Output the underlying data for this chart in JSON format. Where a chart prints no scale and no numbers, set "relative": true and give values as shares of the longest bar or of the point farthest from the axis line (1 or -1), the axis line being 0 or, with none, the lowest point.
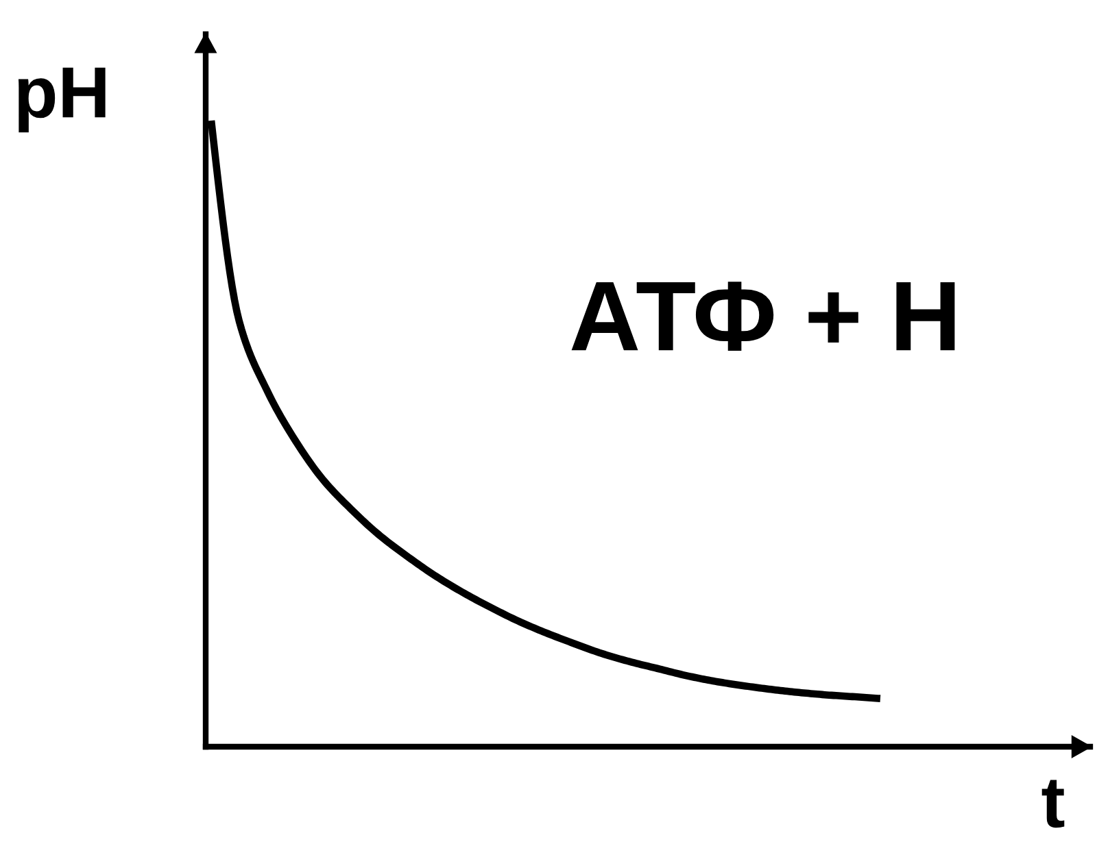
{
  "chart_data": {
    "type": "line",
    "relative": true,
    "xlabel": "t",
    "ylabel": "pH",
    "color": "#000000",
    "categories": [
      null,
      null,
      null,
      null,
      null,
      null,
      null,
      null,
      null,
      null,
      null,
      null,
      null,
      null,
      null,
      null,
      null,
      null,
      null,
      null,
      null,
      null,
      null,
      null,
      null
    ],
    "values": [
      1.0,
      0.68,
      0.569,
      0.49,
      0.427,
      0.38,
      0.339,
      0.305,
      0.274,
      0.247,
      0.223,
      0.201,
      0.182,
      0.165,
      0.149,
      0.136,
      0.125,
      0.114,
      0.105,
      0.098,
      0.092,
      0.087,
      0.083,
      0.08,
      0.077
    ],
    "annotations": [
      "АТФ + Н"
    ]
  }
}
